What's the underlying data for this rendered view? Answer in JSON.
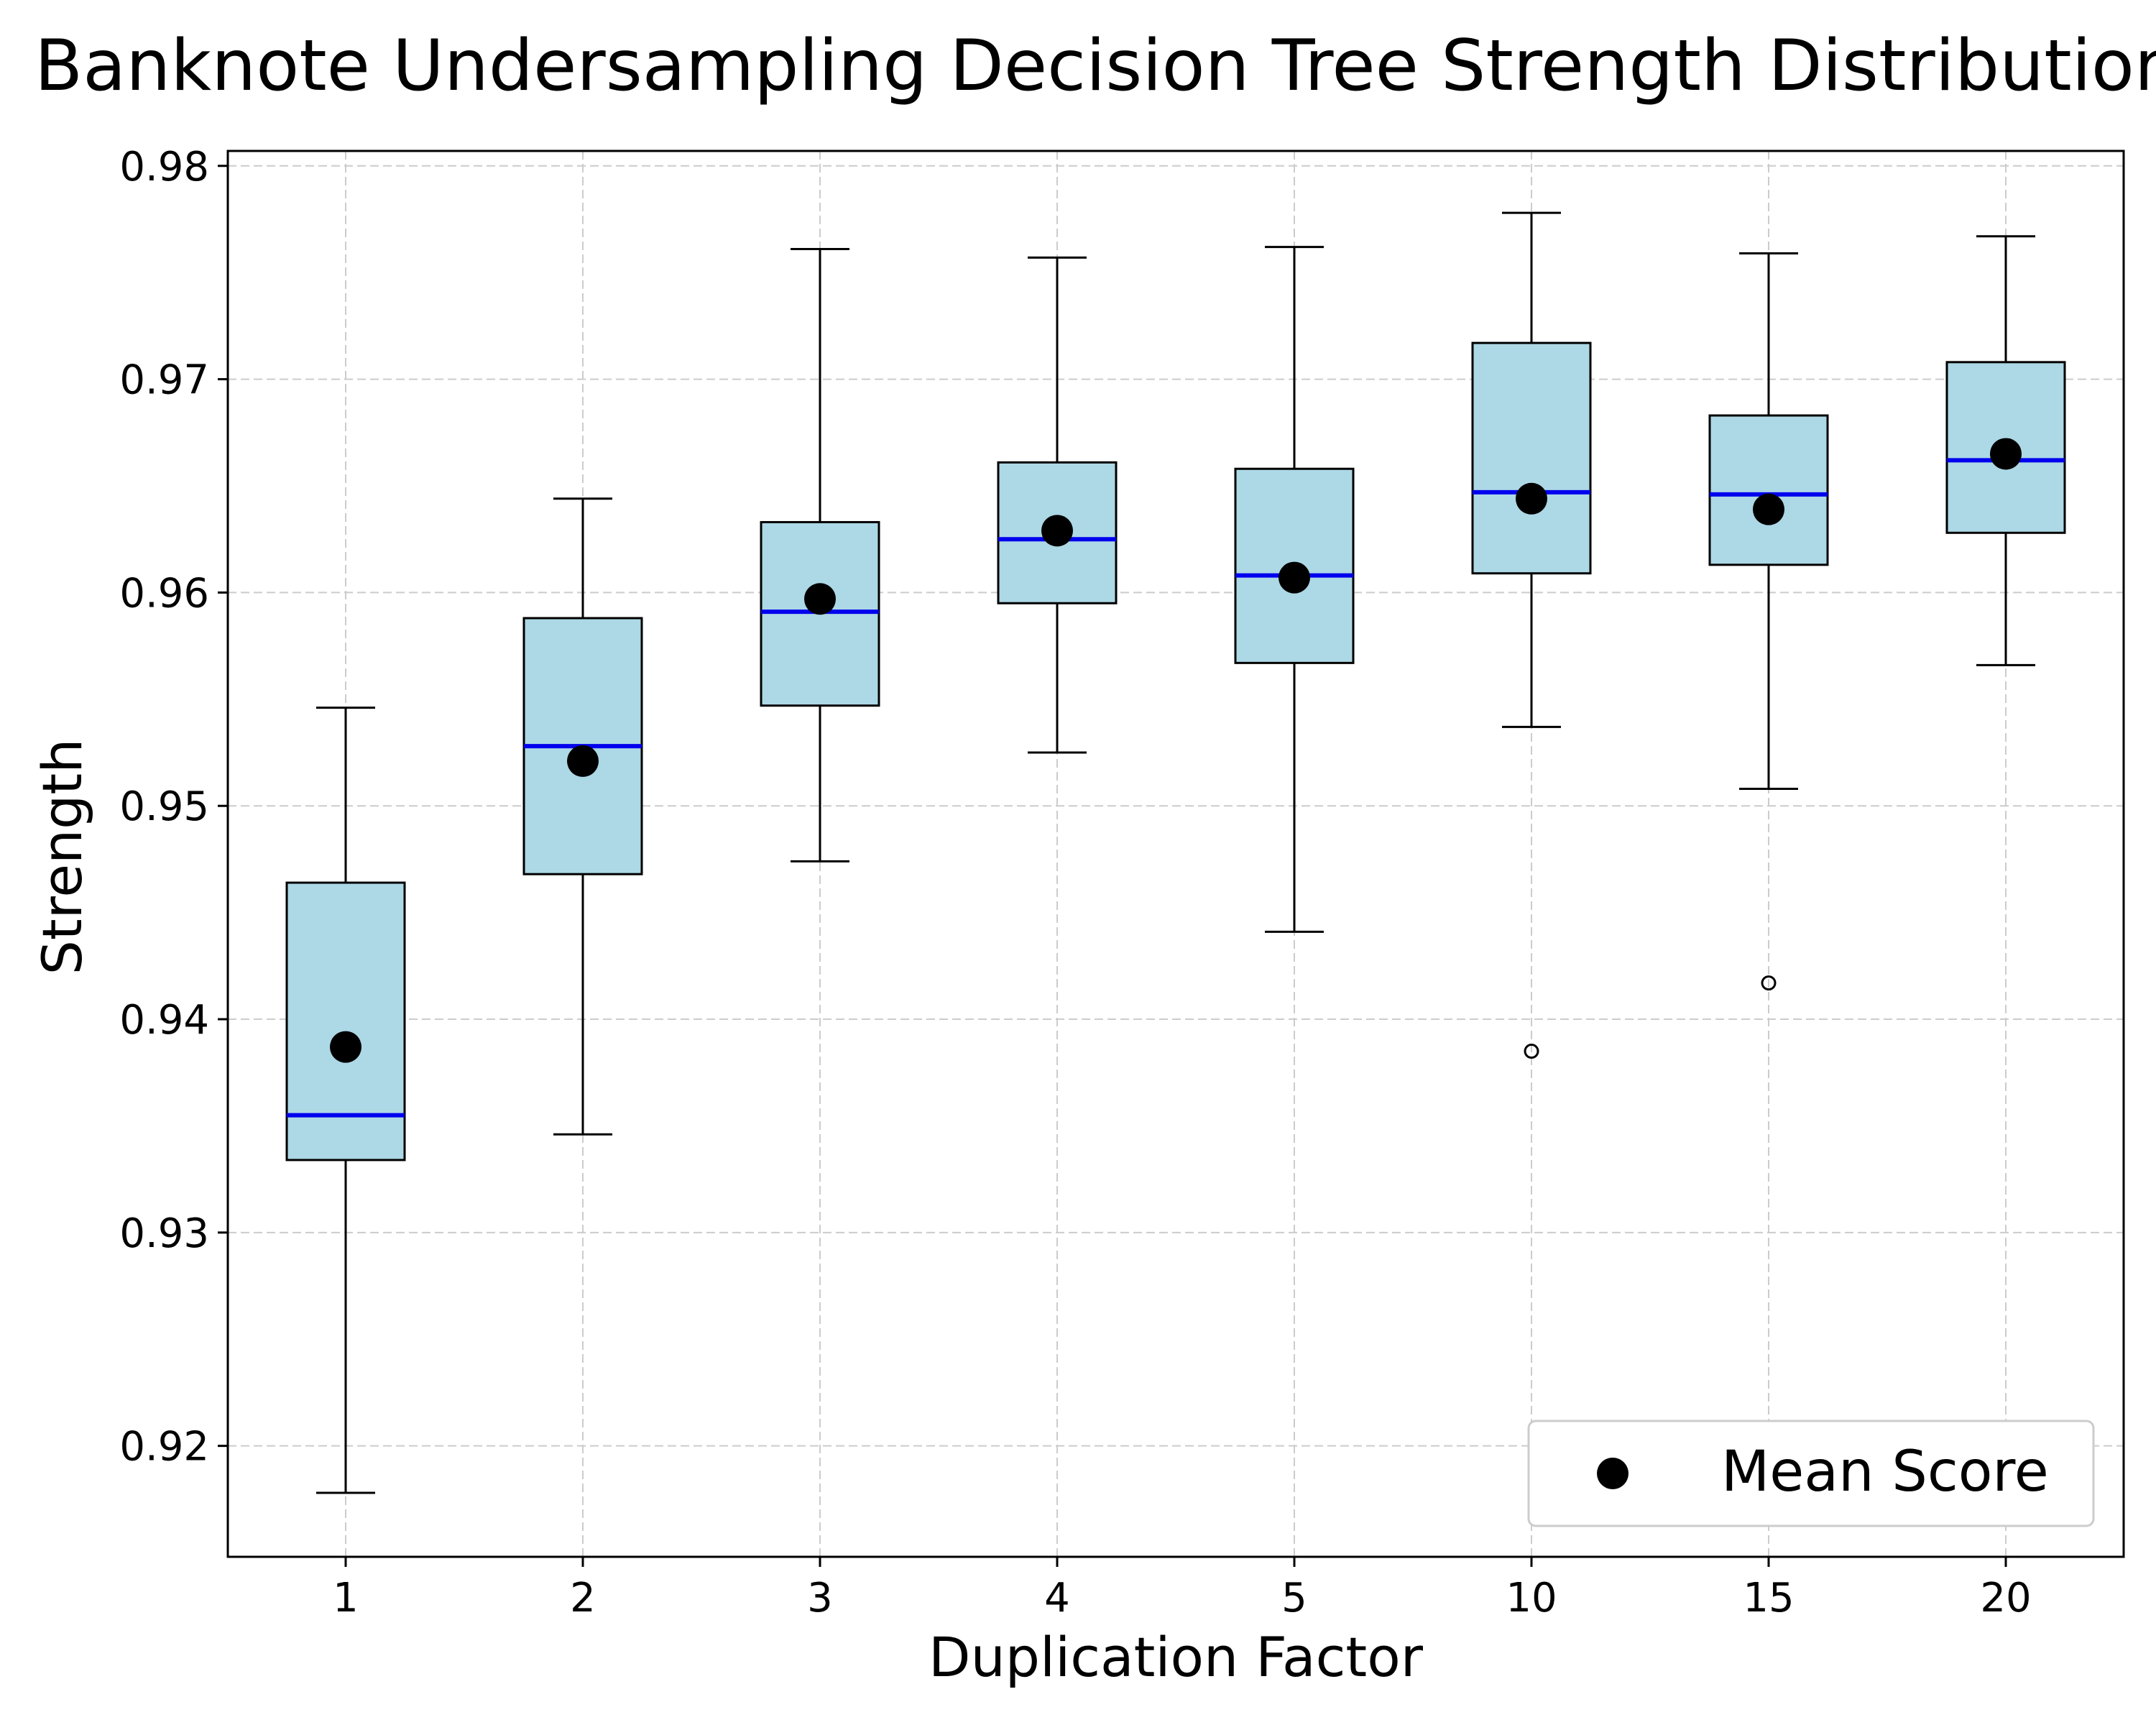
{
  "chart_data": {
    "type": "box",
    "title": "Banknote Undersampling Decision Tree Strength Distribution",
    "xlabel": "Duplication Factor",
    "ylabel": "Strength",
    "ylim": [
      0.9148,
      0.9807
    ],
    "yticks": [
      "0.92",
      "0.93",
      "0.94",
      "0.95",
      "0.96",
      "0.97",
      "0.98"
    ],
    "grid": true,
    "legend": {
      "location": "lower-right",
      "entries": [
        "Mean Score"
      ]
    },
    "colors": {
      "box_fill": "#add8e6",
      "median": "#0000ee",
      "mean_marker": "#000000",
      "grid": "#cccccc"
    },
    "categories": [
      "1",
      "2",
      "3",
      "4",
      "5",
      "10",
      "15",
      "20"
    ],
    "boxes": [
      {
        "q1": 0.9334,
        "median": 0.9355,
        "q3": 0.9464,
        "whisker_low": 0.9178,
        "whisker_high": 0.9546,
        "mean": 0.9387,
        "outliers": []
      },
      {
        "q1": 0.9468,
        "median": 0.9528,
        "q3": 0.9588,
        "whisker_low": 0.9346,
        "whisker_high": 0.9644,
        "mean": 0.9521,
        "outliers": []
      },
      {
        "q1": 0.9547,
        "median": 0.9591,
        "q3": 0.9633,
        "whisker_low": 0.9474,
        "whisker_high": 0.9761,
        "mean": 0.9597,
        "outliers": []
      },
      {
        "q1": 0.9595,
        "median": 0.9625,
        "q3": 0.9661,
        "whisker_low": 0.9525,
        "whisker_high": 0.9757,
        "mean": 0.9629,
        "outliers": []
      },
      {
        "q1": 0.9567,
        "median": 0.9608,
        "q3": 0.9658,
        "whisker_low": 0.9441,
        "whisker_high": 0.9762,
        "mean": 0.9607,
        "outliers": []
      },
      {
        "q1": 0.9609,
        "median": 0.9647,
        "q3": 0.9717,
        "whisker_low": 0.9537,
        "whisker_high": 0.9778,
        "mean": 0.9644,
        "outliers": [
          0.9385
        ]
      },
      {
        "q1": 0.9613,
        "median": 0.9646,
        "q3": 0.9683,
        "whisker_low": 0.9508,
        "whisker_high": 0.9759,
        "mean": 0.9639,
        "outliers": [
          0.9417
        ]
      },
      {
        "q1": 0.9628,
        "median": 0.9662,
        "q3": 0.9708,
        "whisker_low": 0.9566,
        "whisker_high": 0.9767,
        "mean": 0.9665,
        "outliers": []
      }
    ]
  }
}
